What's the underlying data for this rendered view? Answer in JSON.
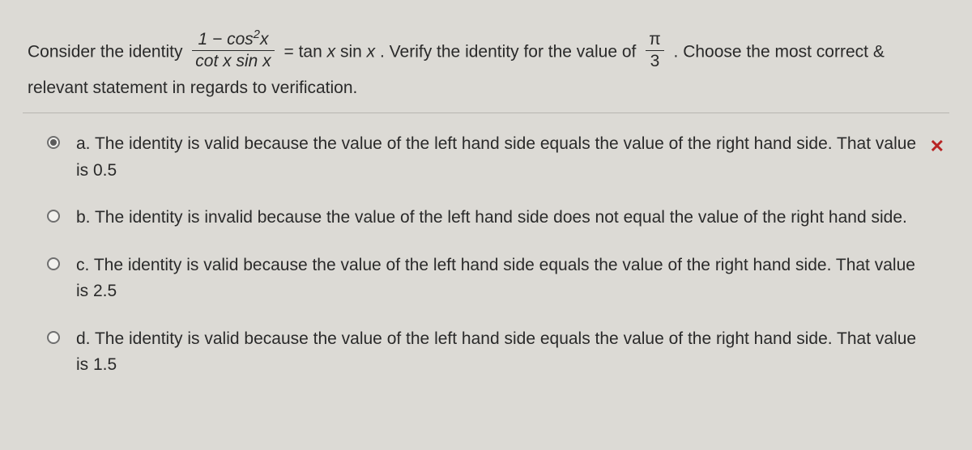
{
  "colors": {
    "bg": "#dcdad5",
    "text": "#2a2a2a",
    "divider": "#b8b6b1",
    "radio_border": "#6f6f6f",
    "wrong_mark": "#b82424"
  },
  "prompt": {
    "pre": "Consider the identity ",
    "frac_num_a": "1 − cos",
    "frac_num_exp": "2",
    "frac_num_b": "x",
    "frac_den": "cot x sin x",
    "mid1": " = tan ",
    "mid_var1": "x",
    "mid2": " sin ",
    "mid_var2": "x",
    "mid3": " . Verify the identity for the value of ",
    "pi_num": "π",
    "pi_den": "3",
    "post": ". Choose the most correct &",
    "line2": "relevant statement in regards to verification."
  },
  "options": [
    {
      "letter": "a.",
      "text": "The identity is valid because the value of the left hand side equals the value of the right hand side. That value is 0.5",
      "selected": true,
      "mark": "✕",
      "mark_kind": "wrong"
    },
    {
      "letter": "b.",
      "text": "The identity is invalid because the value of the left hand side does not equal the value of the right hand side.",
      "selected": false,
      "mark": "",
      "mark_kind": ""
    },
    {
      "letter": "c.",
      "text": "The identity is valid because the value of the left hand side equals the value of the right hand side. That value is 2.5",
      "selected": false,
      "mark": "",
      "mark_kind": ""
    },
    {
      "letter": "d.",
      "text": "The identity is valid because the value of the left hand side equals the value of the right hand side. That value is 1.5",
      "selected": false,
      "mark": "",
      "mark_kind": ""
    }
  ]
}
